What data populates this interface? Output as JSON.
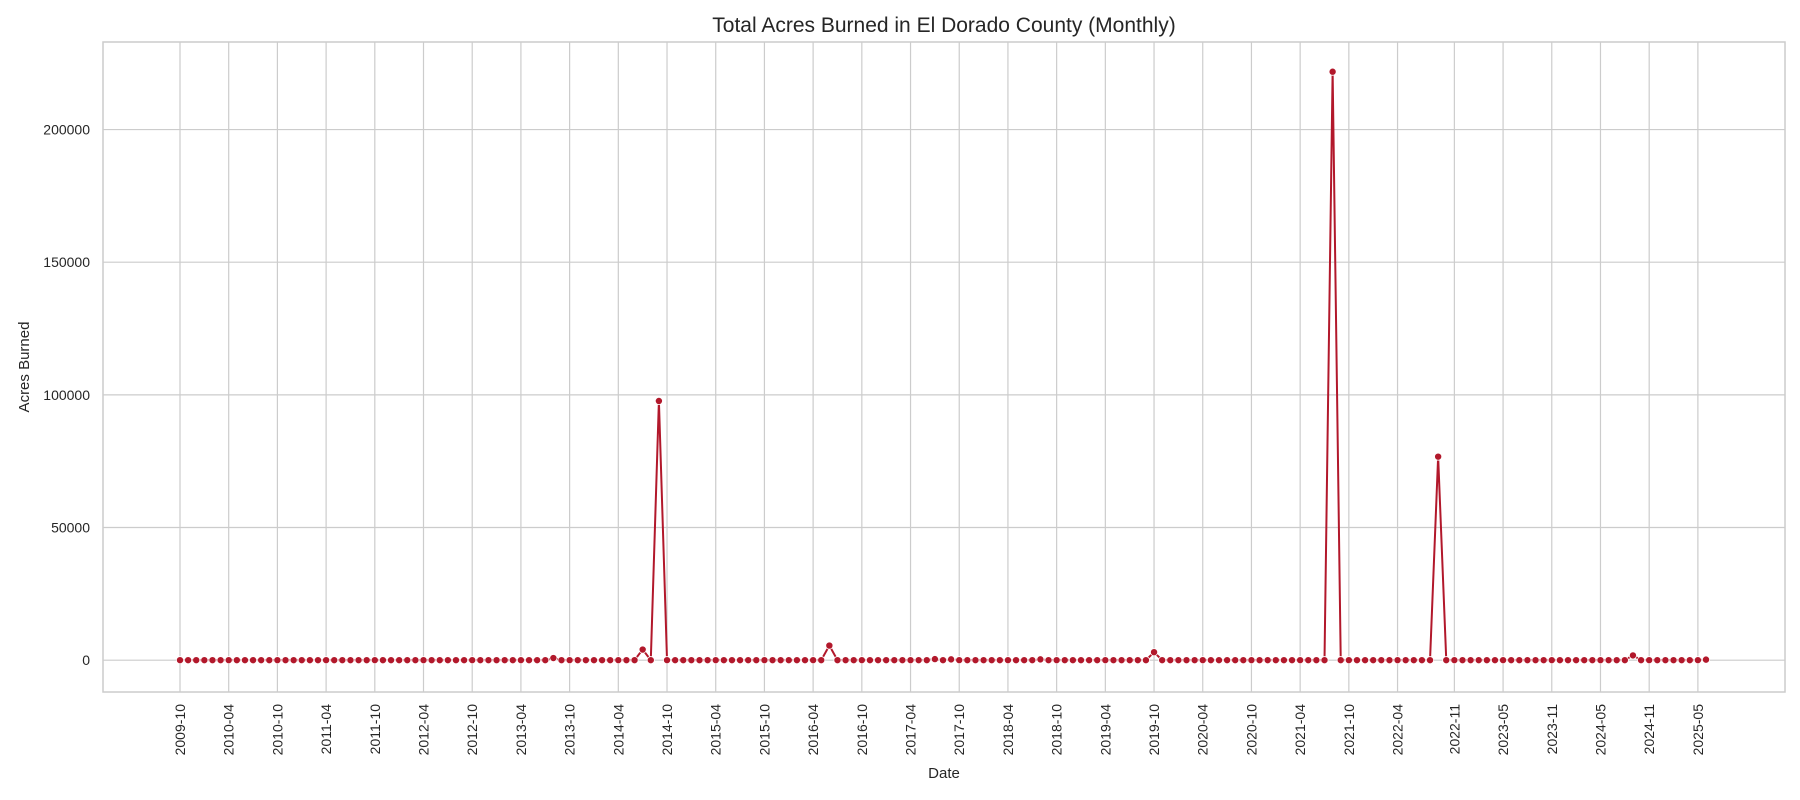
{
  "chart_data": {
    "type": "line",
    "title": "Total Acres Burned in El Dorado County (Monthly)",
    "xlabel": "Date",
    "ylabel": "Acres Burned",
    "grid": true,
    "x_unit": "month",
    "x_start": "2009-10",
    "x_end": "2025-06",
    "x_ticks": [
      "2009-10",
      "2010-04",
      "2010-10",
      "2011-04",
      "2011-10",
      "2012-04",
      "2012-10",
      "2013-04",
      "2013-10",
      "2014-04",
      "2014-10",
      "2015-04",
      "2015-10",
      "2016-04",
      "2016-10",
      "2017-04",
      "2017-10",
      "2018-04",
      "2018-10",
      "2019-04",
      "2019-10",
      "2020-04",
      "2020-10",
      "2021-04",
      "2021-10",
      "2022-04",
      "2022-11",
      "2023-05",
      "2023-11",
      "2024-05",
      "2024-11",
      "2025-05"
    ],
    "ylim": [
      -12000,
      233000
    ],
    "y_ticks": [
      0,
      50000,
      100000,
      150000,
      200000
    ],
    "series": [
      {
        "color": "#b2182b",
        "marker": "circle",
        "default_value": 0,
        "points": [
          {
            "x": "2013-08",
            "y": 800
          },
          {
            "x": "2014-07",
            "y": 4000
          },
          {
            "x": "2014-09",
            "y": 97700
          },
          {
            "x": "2016-06",
            "y": 5500
          },
          {
            "x": "2017-07",
            "y": 400
          },
          {
            "x": "2017-09",
            "y": 300
          },
          {
            "x": "2018-08",
            "y": 300
          },
          {
            "x": "2019-10",
            "y": 3000
          },
          {
            "x": "2021-08",
            "y": 221800
          },
          {
            "x": "2022-09",
            "y": 76700
          },
          {
            "x": "2024-09",
            "y": 1800
          },
          {
            "x": "2025-06",
            "y": 200
          }
        ]
      }
    ]
  }
}
